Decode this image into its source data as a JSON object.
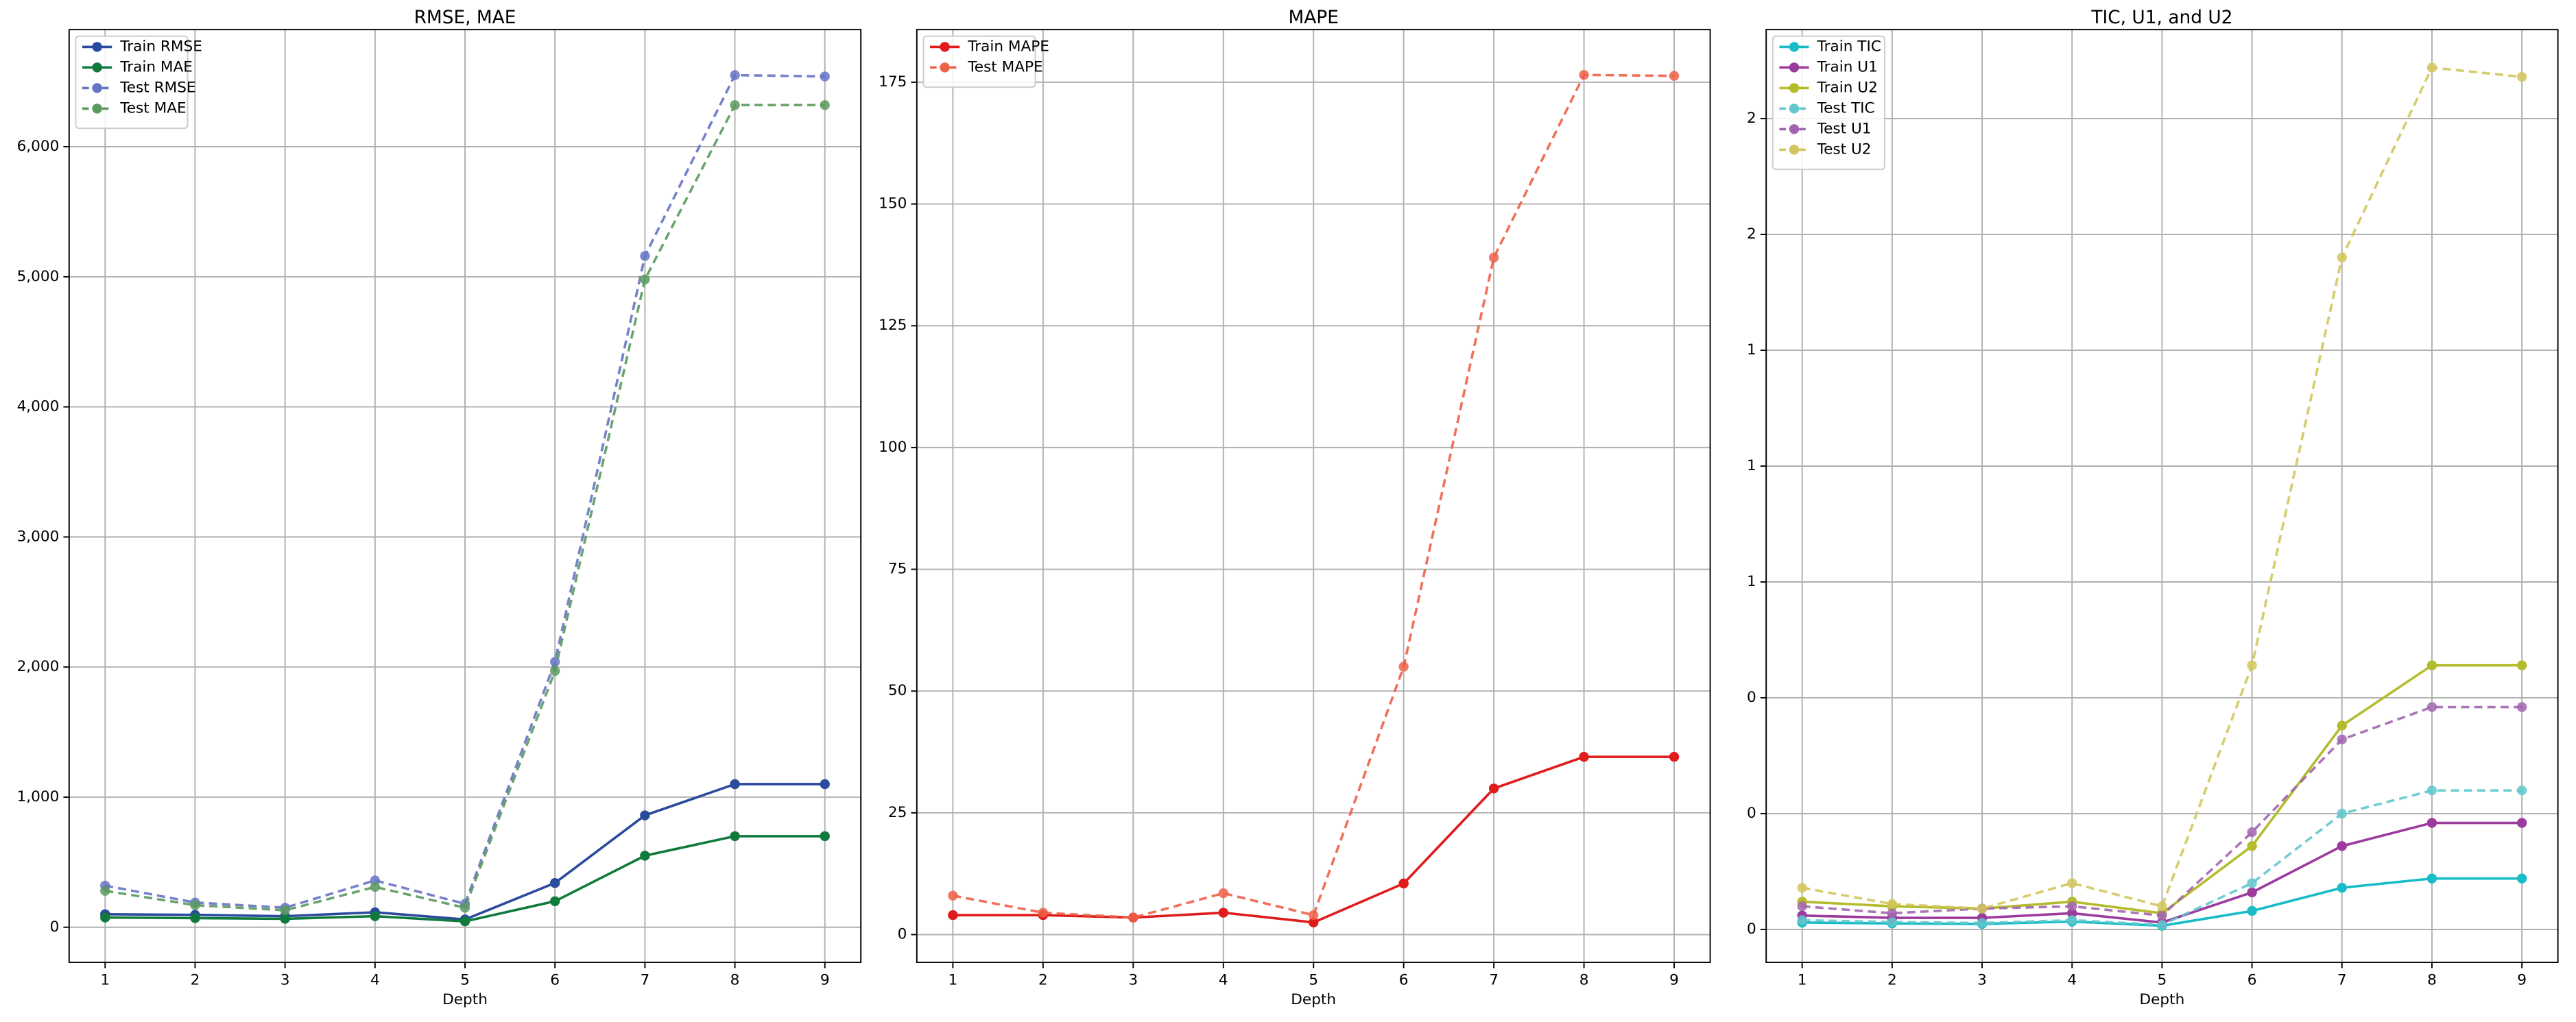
{
  "chart_data": [
    {
      "type": "line",
      "title": "RMSE, MAE",
      "x_label": "Depth",
      "x": [
        1,
        2,
        3,
        4,
        5,
        6,
        7,
        8,
        9
      ],
      "xlim": [
        0.6,
        9.4
      ],
      "xticks": [
        1,
        2,
        3,
        4,
        5,
        6,
        7,
        8,
        9
      ],
      "ylim": [
        -270,
        6900
      ],
      "yticks": [
        0,
        {
          "value": 1000,
          "label": "1,000"
        },
        {
          "value": 2000,
          "label": "2,000"
        },
        {
          "value": 3000,
          "label": "3,000"
        },
        {
          "value": 4000,
          "label": "4,000"
        },
        {
          "value": 5000,
          "label": "5,000"
        },
        {
          "value": 6000,
          "label": "6,000"
        }
      ],
      "grid": true,
      "legend": "upper left",
      "series": [
        {
          "name": "Train RMSE",
          "color": "#2a4a9e",
          "linestyle": "solid",
          "values": [
            100,
            95,
            85,
            115,
            60,
            340,
            860,
            1100,
            1100
          ]
        },
        {
          "name": "Train MAE",
          "color": "#0f7a3c",
          "linestyle": "solid",
          "values": [
            75,
            70,
            65,
            85,
            45,
            200,
            550,
            700,
            700
          ]
        },
        {
          "name": "Test RMSE",
          "color": "#6674c4",
          "linestyle": "dashed",
          "values": [
            320,
            190,
            150,
            360,
            180,
            2040,
            5160,
            6550,
            6540
          ]
        },
        {
          "name": "Test MAE",
          "color": "#5a9a5e",
          "linestyle": "dashed",
          "values": [
            280,
            170,
            130,
            310,
            150,
            1970,
            4980,
            6320,
            6320
          ]
        }
      ]
    },
    {
      "type": "line",
      "title": "MAPE",
      "x_label": "Depth",
      "x": [
        1,
        2,
        3,
        4,
        5,
        6,
        7,
        8,
        9
      ],
      "xlim": [
        0.6,
        9.4
      ],
      "xticks": [
        1,
        2,
        3,
        4,
        5,
        6,
        7,
        8,
        9
      ],
      "ylim": [
        -5.7,
        185.8
      ],
      "yticks": [
        0,
        25,
        50,
        75,
        100,
        125,
        150,
        175
      ],
      "grid": true,
      "legend": "upper left",
      "series": [
        {
          "name": "Train MAPE",
          "color": "#e01b1b",
          "linestyle": "solid",
          "values": [
            4,
            4,
            3.5,
            4.5,
            2.5,
            10.5,
            30,
            36.5,
            36.5
          ]
        },
        {
          "name": "Test MAPE",
          "color": "#ee6048",
          "linestyle": "dashed",
          "values": [
            8,
            4.5,
            3.5,
            8.5,
            4,
            55,
            139,
            176.5,
            176.3
          ]
        }
      ]
    },
    {
      "type": "line",
      "title": "TIC, U1, and U2",
      "x_label": "Depth",
      "x": [
        1,
        2,
        3,
        4,
        5,
        6,
        7,
        8,
        9
      ],
      "xlim": [
        0.6,
        9.4
      ],
      "xticks": [
        1,
        2,
        3,
        4,
        5,
        6,
        7,
        8,
        9
      ],
      "ylim": [
        -0.071,
        1.942
      ],
      "yticks": [
        0,
        {
          "value": 0.25,
          "label": "0"
        },
        {
          "value": 0.5,
          "label": "0"
        },
        {
          "value": 0.75,
          "label": "1"
        },
        1,
        {
          "value": 1.25,
          "label": "1"
        },
        {
          "value": 1.5,
          "label": "2"
        },
        {
          "value": 1.75,
          "label": "2"
        }
      ],
      "grid": true,
      "legend": "upper left",
      "series": [
        {
          "name": "Train TIC",
          "color": "#17bcc8",
          "linestyle": "solid",
          "values": [
            0.015,
            0.013,
            0.012,
            0.017,
            0.008,
            0.04,
            0.09,
            0.11,
            0.11
          ]
        },
        {
          "name": "Train U1",
          "color": "#9c3a9e",
          "linestyle": "solid",
          "values": [
            0.03,
            0.025,
            0.025,
            0.035,
            0.015,
            0.08,
            0.18,
            0.23,
            0.23
          ]
        },
        {
          "name": "Train U2",
          "color": "#b4bc2c",
          "linestyle": "solid",
          "values": [
            0.06,
            0.05,
            0.045,
            0.06,
            0.035,
            0.18,
            0.44,
            0.57,
            0.57
          ]
        },
        {
          "name": "Test TIC",
          "color": "#62c8cc",
          "linestyle": "dashed",
          "values": [
            0.02,
            0.016,
            0.014,
            0.02,
            0.01,
            0.1,
            0.25,
            0.3,
            0.3
          ]
        },
        {
          "name": "Test U1",
          "color": "#a266b0",
          "linestyle": "dashed",
          "values": [
            0.05,
            0.035,
            0.045,
            0.05,
            0.03,
            0.21,
            0.41,
            0.48,
            0.48
          ]
        },
        {
          "name": "Test U2",
          "color": "#d2c65c",
          "linestyle": "dashed",
          "values": [
            0.09,
            0.055,
            0.045,
            0.1,
            0.05,
            0.57,
            1.45,
            1.86,
            1.84
          ]
        }
      ]
    }
  ]
}
